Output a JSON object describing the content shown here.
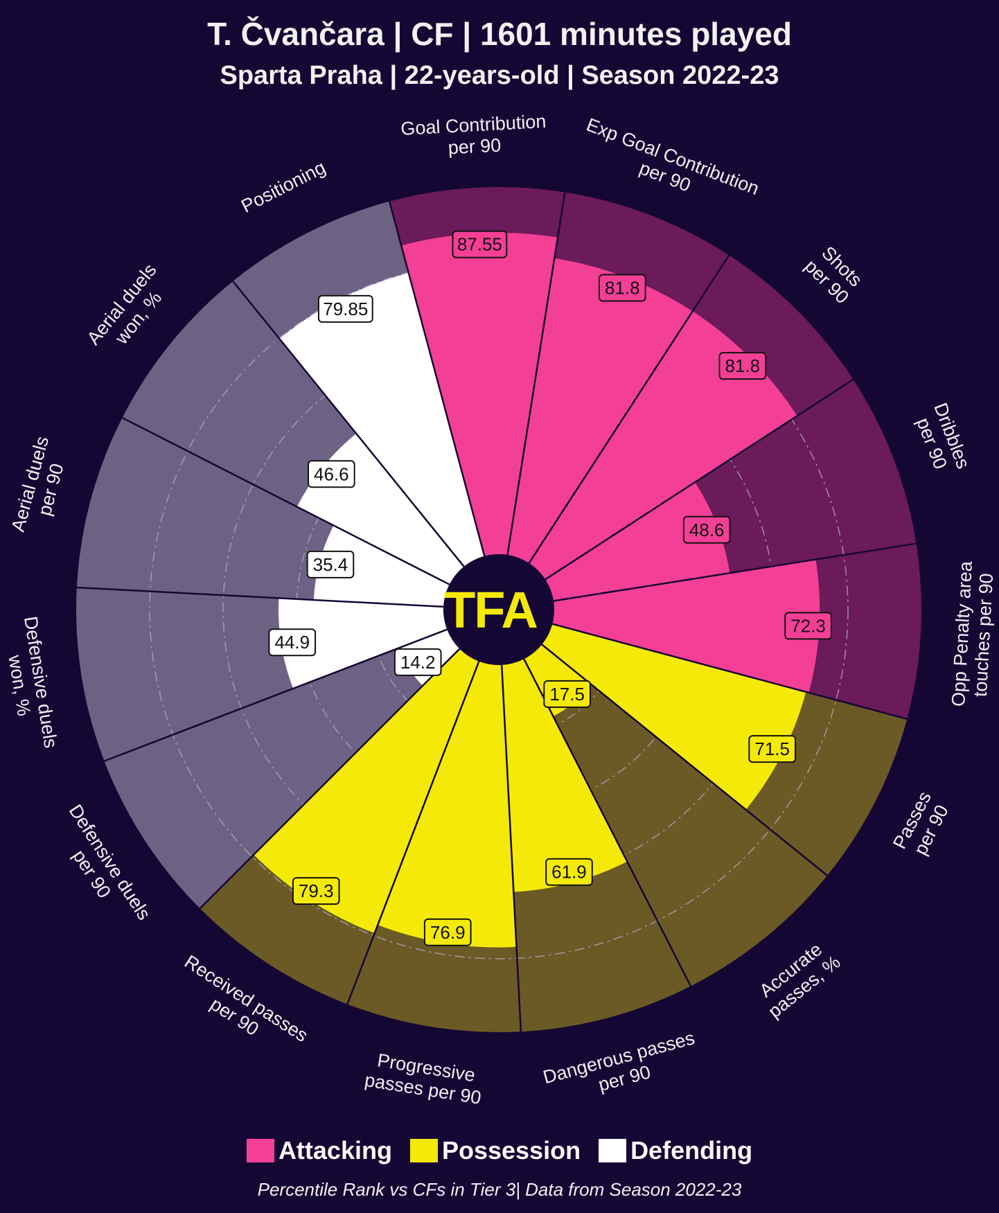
{
  "header": {
    "title": "T. Čvančara | CF | 1601 minutes played",
    "subtitle": "Sparta Praha | 22-years-old | Season 2022-23"
  },
  "logo": {
    "text": "TFA"
  },
  "legend": {
    "items": [
      {
        "label": "Attacking",
        "color": "#f43f96"
      },
      {
        "label": "Possession",
        "color": "#f5ea07"
      },
      {
        "label": "Defending",
        "color": "#ffffff"
      }
    ]
  },
  "footnote": "Percentile Rank vs CFs in Tier 3| Data from Season 2022-23",
  "colors": {
    "background": "#150734",
    "attacking_fill": "#f43f96",
    "attacking_bg": "#6b1a5a",
    "possession_fill": "#f5ea07",
    "possession_bg": "#6b5a25",
    "defending_fill": "#ffffff",
    "defending_bg": "#6e6284"
  },
  "chart_data": {
    "type": "pie",
    "subtype": "radar-percentile",
    "range": [
      0,
      100
    ],
    "grid": true,
    "categories": [
      {
        "name": "Attacking",
        "metrics": [
          {
            "label": "Goal Contribution\nper 90",
            "value": 87.55
          },
          {
            "label": "Exp Goal Contribution\nper 90",
            "value": 81.8
          },
          {
            "label": "Shots\nper 90",
            "value": 81.8
          },
          {
            "label": "Dribbles\nper 90",
            "value": 48.6
          },
          {
            "label": "Opp Penalty area\ntouches per 90",
            "value": 72.3
          }
        ]
      },
      {
        "name": "Possession",
        "metrics": [
          {
            "label": "Passes\nper 90",
            "value": 71.5
          },
          {
            "label": "Accurate\npasses, %",
            "value": 17.5
          },
          {
            "label": "Dangerous passes\nper 90",
            "value": 61.9
          },
          {
            "label": "Progressive\npasses per 90",
            "value": 76.9
          },
          {
            "label": "Received passes\nper 90",
            "value": 79.3
          }
        ]
      },
      {
        "name": "Defending",
        "metrics": [
          {
            "label": "Defensive duels\nper 90",
            "value": 14.2
          },
          {
            "label": "Defensive duels\nwon, %",
            "value": 44.9
          },
          {
            "label": "Aerial duels\nper 90",
            "value": 35.4
          },
          {
            "label": "Aerial duels\nwon, %",
            "value": 46.6
          },
          {
            "label": "Positioning",
            "value": 79.85
          }
        ]
      }
    ]
  }
}
